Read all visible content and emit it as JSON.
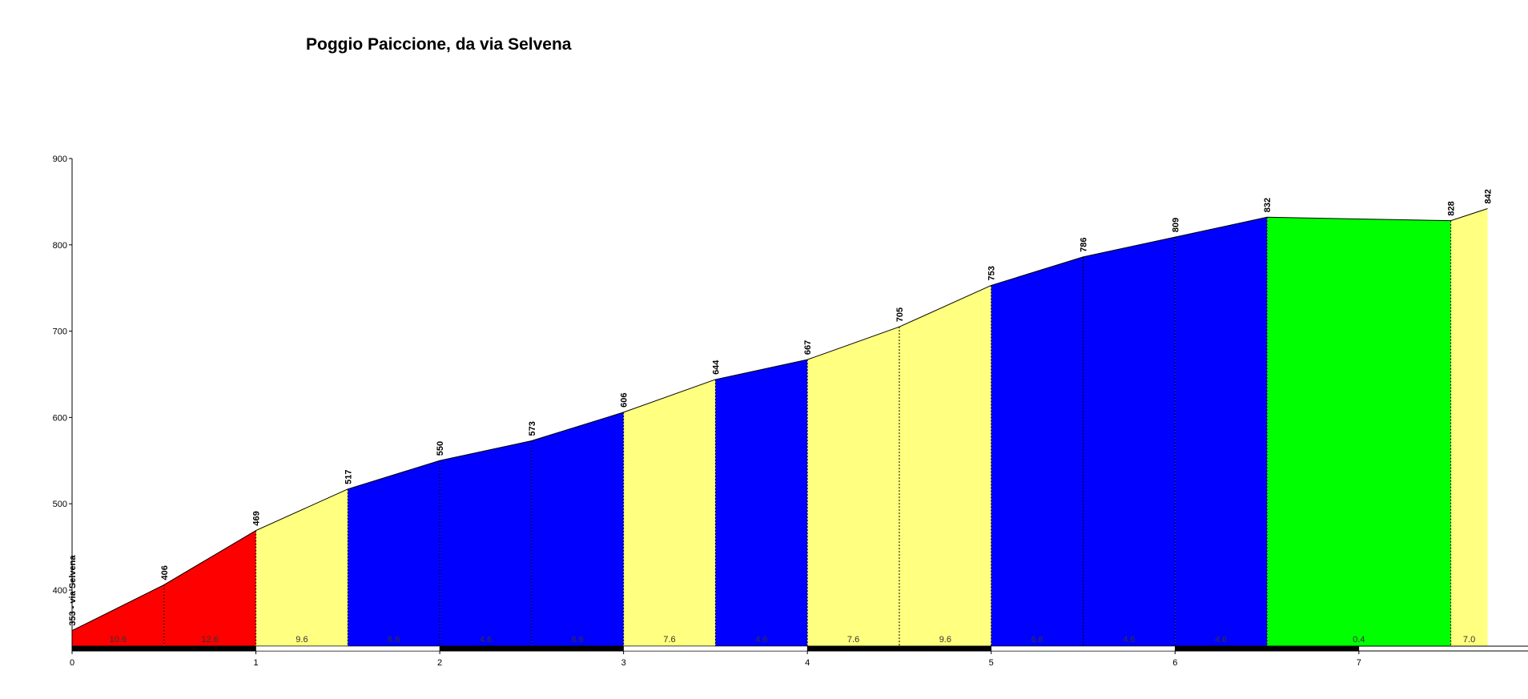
{
  "chart_data": {
    "type": "profile",
    "title": "Poggio Paiccione, da via Selvena",
    "x": [
      0,
      0.5,
      1,
      1.5,
      2,
      2.5,
      3,
      3.5,
      4,
      4.5,
      5,
      5.5,
      6,
      6.5,
      7.5,
      7.7
    ],
    "values": [
      353,
      406,
      469,
      517,
      550,
      573,
      606,
      644,
      667,
      705,
      753,
      786,
      809,
      832,
      828,
      842
    ],
    "value_labels": [
      "353 - via Selvena",
      "406",
      "469",
      "517",
      "550",
      "573",
      "606",
      "644",
      "667",
      "705",
      "753",
      "786",
      "809",
      "832",
      "828",
      "842"
    ],
    "segment_colors": [
      "#ff0000",
      "#ff0000",
      "#ffff80",
      "#0000ff",
      "#0000ff",
      "#0000ff",
      "#ffff80",
      "#0000ff",
      "#ffff80",
      "#ffff80",
      "#0000ff",
      "#0000ff",
      "#0000ff",
      "#00ff00",
      "#ffff80"
    ],
    "grade_labels": [
      "10.6",
      "12.6",
      "9.6",
      "6.6",
      "4.6",
      "6.6",
      "7.6",
      "4.6",
      "7.6",
      "9.6",
      "6.6",
      "4.6",
      "4.6",
      "0.4",
      "7.0"
    ],
    "xlim": [
      0,
      7.92
    ],
    "ylim": [
      335,
      900
    ],
    "xticks": [
      0,
      1,
      2,
      3,
      4,
      5,
      6,
      7
    ],
    "yticks": [
      400,
      500,
      600,
      700,
      800,
      900
    ]
  }
}
